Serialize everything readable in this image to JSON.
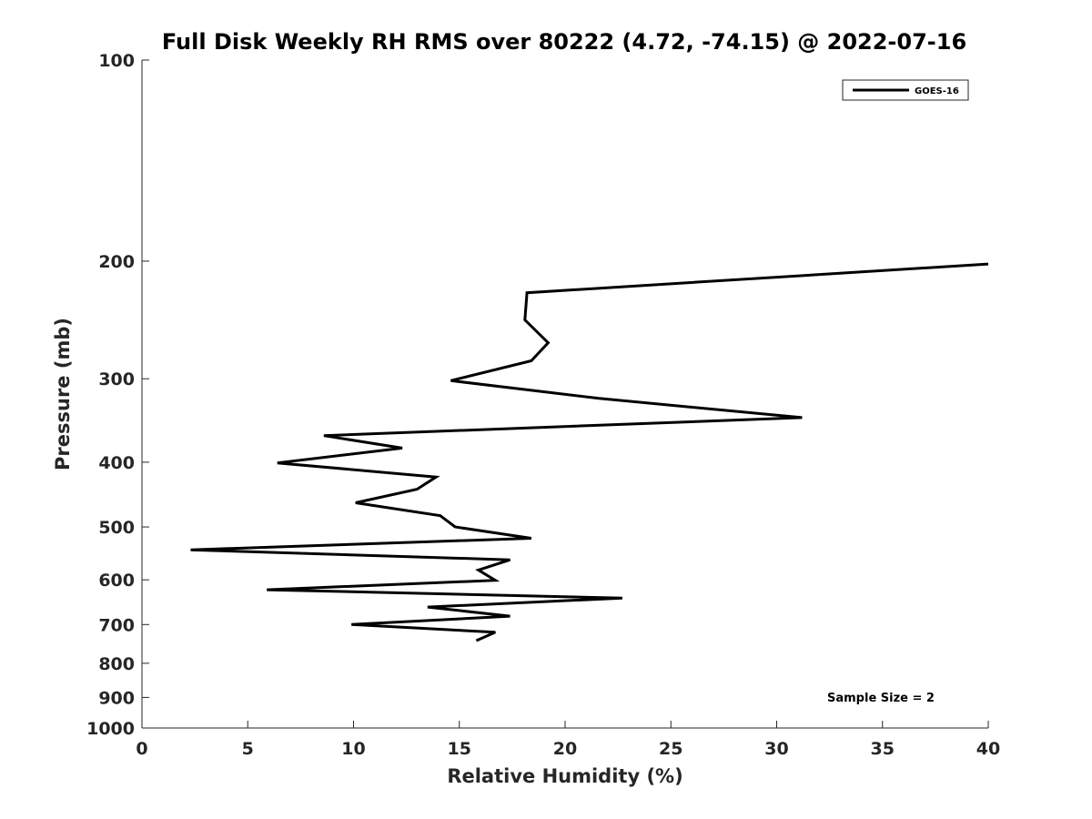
{
  "chart_data": {
    "type": "line",
    "title": "Full Disk Weekly RH RMS over 80222 (4.72, -74.15) @ 2022-07-16",
    "xlabel": "Relative Humidity (%)",
    "ylabel": "Pressure (mb)",
    "xlim": [
      0,
      40
    ],
    "ylim": [
      1000,
      100
    ],
    "yscale": "log",
    "y_reversed": true,
    "x_ticks": [
      0,
      5,
      10,
      15,
      20,
      25,
      30,
      35,
      40
    ],
    "x_tick_labels": [
      "0",
      "5",
      "10",
      "15",
      "20",
      "25",
      "30",
      "35",
      "40"
    ],
    "y_ticks": [
      100,
      200,
      300,
      400,
      500,
      600,
      700,
      800,
      900,
      1000
    ],
    "y_tick_labels": [
      "100",
      "200",
      "300",
      "400",
      "500",
      "600",
      "700",
      "800",
      "900",
      "1000"
    ],
    "grid": false,
    "legend_position": "top-right",
    "annotation": "Sample Size = 2",
    "series": [
      {
        "name": "GOES-16",
        "color": "#000000",
        "points": [
          {
            "x": 40.0,
            "y": 202
          },
          {
            "x": 18.2,
            "y": 223
          },
          {
            "x": 18.1,
            "y": 245
          },
          {
            "x": 19.2,
            "y": 265
          },
          {
            "x": 18.4,
            "y": 282
          },
          {
            "x": 14.6,
            "y": 302
          },
          {
            "x": 21.6,
            "y": 321
          },
          {
            "x": 31.2,
            "y": 343
          },
          {
            "x": 8.6,
            "y": 365
          },
          {
            "x": 12.3,
            "y": 381
          },
          {
            "x": 6.4,
            "y": 401
          },
          {
            "x": 13.9,
            "y": 421
          },
          {
            "x": 13.0,
            "y": 439
          },
          {
            "x": 10.1,
            "y": 460
          },
          {
            "x": 14.1,
            "y": 481
          },
          {
            "x": 14.8,
            "y": 500
          },
          {
            "x": 18.4,
            "y": 520
          },
          {
            "x": 2.3,
            "y": 541
          },
          {
            "x": 17.4,
            "y": 560
          },
          {
            "x": 15.9,
            "y": 580
          },
          {
            "x": 16.7,
            "y": 601
          },
          {
            "x": 5.9,
            "y": 621
          },
          {
            "x": 22.7,
            "y": 639
          },
          {
            "x": 13.5,
            "y": 659
          },
          {
            "x": 17.4,
            "y": 680
          },
          {
            "x": 9.9,
            "y": 700
          },
          {
            "x": 16.7,
            "y": 719
          },
          {
            "x": 15.8,
            "y": 740
          }
        ]
      }
    ]
  }
}
